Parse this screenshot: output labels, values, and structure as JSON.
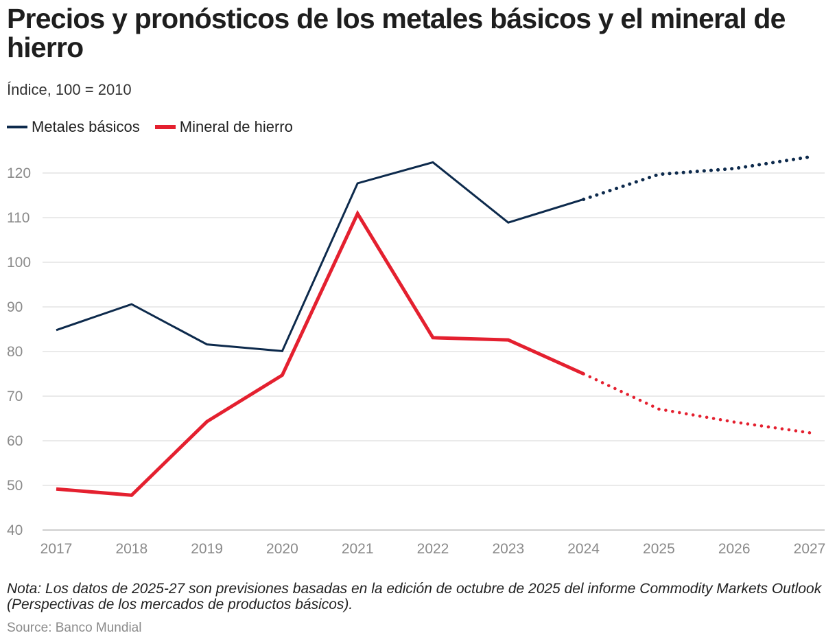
{
  "chart_data": {
    "type": "line",
    "title": "Precios y pronósticos de los metales básicos y el mineral de hierro",
    "subtitle": "Índice, 100 = 2010",
    "x": [
      2017,
      2018,
      2019,
      2020,
      2021,
      2022,
      2023,
      2024,
      2025,
      2026,
      2027
    ],
    "x_labels": [
      "2017",
      "2018",
      "2019",
      "2020",
      "2021",
      "2022",
      "2023",
      "2024",
      "2025",
      "2026",
      "2027"
    ],
    "ylim": [
      40,
      125
    ],
    "yticks": [
      40,
      50,
      60,
      70,
      80,
      90,
      100,
      110,
      120
    ],
    "grid": true,
    "forecast_start": 2024,
    "legend_position": "top-left",
    "series": [
      {
        "name": "Metales básicos",
        "color": "#0d2a4c",
        "values": [
          84.8,
          90.6,
          81.6,
          80.1,
          117.7,
          122.4,
          108.9,
          114.1,
          119.7,
          121.0,
          123.6
        ]
      },
      {
        "name": "Mineral de hierro",
        "color": "#e4202f",
        "values": [
          49.2,
          47.8,
          64.3,
          74.7,
          110.9,
          83.1,
          82.6,
          75.0,
          67.1,
          64.2,
          61.8
        ]
      }
    ]
  },
  "note": "Nota: Los datos de 2025-27 son previsiones basadas en la edición de octubre de 2025 del informe Commodity Markets Outlook (Perspectivas de los mercados de productos básicos).",
  "source": "Source: Banco Mundial"
}
